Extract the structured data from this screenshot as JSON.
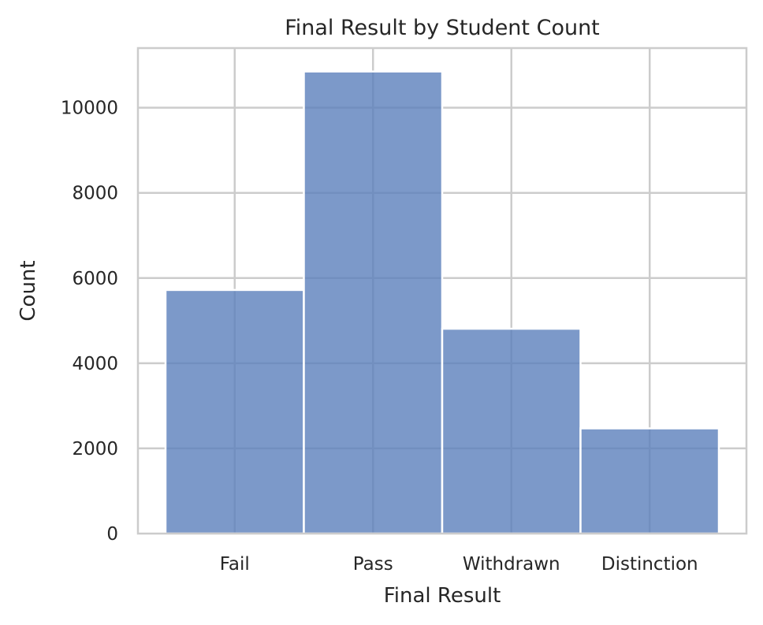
{
  "chart_data": {
    "type": "bar",
    "title": "Final Result by Student Count",
    "xlabel": "Final Result",
    "ylabel": "Count",
    "categories": [
      "Fail",
      "Pass",
      "Withdrawn",
      "Distinction"
    ],
    "values": [
      5720,
      10850,
      4810,
      2470
    ],
    "ylim": [
      0,
      11400
    ],
    "yticks": [
      0,
      2000,
      4000,
      6000,
      8000,
      10000
    ],
    "ytick_labels": [
      "0",
      "2000",
      "4000",
      "6000",
      "8000",
      "10000"
    ],
    "grid": true,
    "legend": "none",
    "bar_color": "#5b7fbb",
    "bar_opacity": 0.8
  }
}
